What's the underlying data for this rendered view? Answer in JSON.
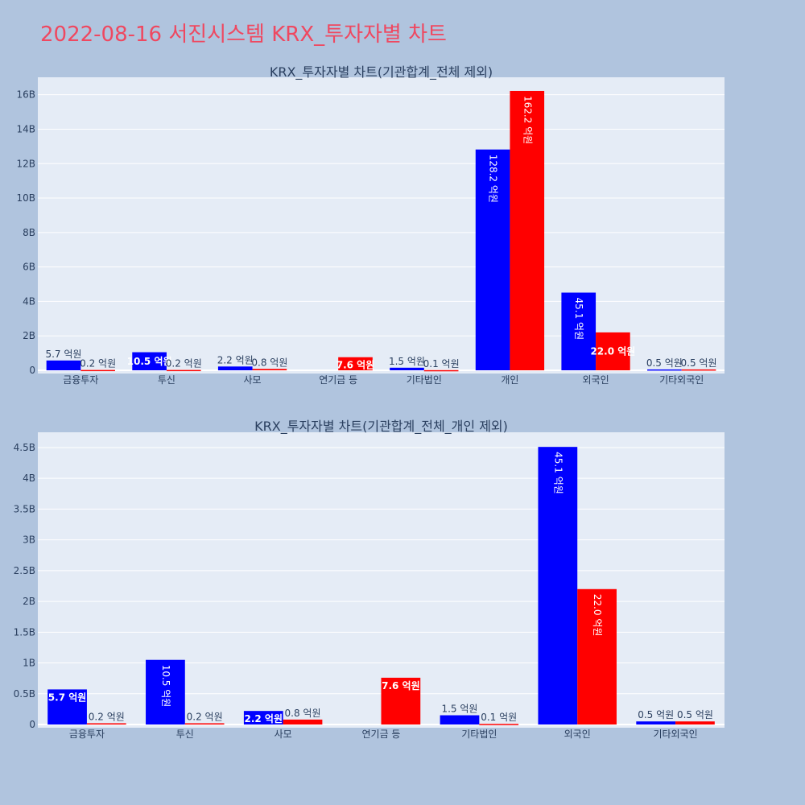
{
  "page_title": "2022-08-16 서진시스템 KRX_투자자별 차트",
  "colors": {
    "background": "#b0c4de",
    "plot_bg": "#e5ecf6",
    "buy": "#0000ff",
    "sell": "#ff0000",
    "title": "#ef4860",
    "text": "#2a3f5f"
  },
  "chart_data": [
    {
      "type": "bar",
      "title": "KRX_투자자별 차트(기관합계_전체 제외)",
      "categories": [
        "금융투자",
        "투신",
        "사모",
        "연기금 등",
        "기타법인",
        "개인",
        "외국인",
        "기타외국인"
      ],
      "series": [
        {
          "color": "#0000ff",
          "values": [
            570000000,
            1050000000,
            220000000,
            0,
            150000000,
            12820000000,
            4510000000,
            50000000
          ],
          "labels": [
            "5.7 억원",
            "10.5 억원",
            "2.2 억원",
            "",
            "1.5 억원",
            "128.2 억원",
            "45.1 억원",
            "0.5 억원"
          ]
        },
        {
          "color": "#ff0000",
          "values": [
            20000000,
            20000000,
            80000000,
            760000000,
            10000000,
            16220000000,
            2200000000,
            50000000
          ],
          "labels": [
            "0.2 억원",
            "0.2 억원",
            "0.8 억원",
            "7.6 억원",
            "0.1 억원",
            "162.2 억원",
            "22.0 억원",
            "0.5 억원"
          ]
        }
      ],
      "ylim": [
        0,
        17200000000
      ],
      "yticks": [
        0,
        2000000000,
        4000000000,
        6000000000,
        8000000000,
        10000000000,
        12000000000,
        14000000000,
        16000000000
      ],
      "ytick_labels": [
        "0",
        "2B",
        "4B",
        "6B",
        "8B",
        "10B",
        "12B",
        "14B",
        "16B"
      ],
      "grid": true
    },
    {
      "type": "bar",
      "title": "KRX_투자자별 차트(기관합계_전체_개인 제외)",
      "categories": [
        "금융투자",
        "투신",
        "사모",
        "연기금 등",
        "기타법인",
        "외국인",
        "기타외국인"
      ],
      "series": [
        {
          "color": "#0000ff",
          "values": [
            570000000,
            1050000000,
            220000000,
            0,
            150000000,
            4510000000,
            50000000
          ],
          "labels": [
            "5.7 억원",
            "10.5 억원",
            "2.2 억원",
            "",
            "1.5 억원",
            "45.1 억원",
            "0.5 억원"
          ]
        },
        {
          "color": "#ff0000",
          "values": [
            20000000,
            20000000,
            80000000,
            760000000,
            10000000,
            2200000000,
            50000000
          ],
          "labels": [
            "0.2 억원",
            "0.2 억원",
            "0.8 억원",
            "7.6 억원",
            "0.1 억원",
            "22.0 억원",
            "0.5 억원"
          ]
        }
      ],
      "ylim": [
        0,
        4800000000
      ],
      "yticks": [
        0,
        500000000,
        1000000000,
        1500000000,
        2000000000,
        2500000000,
        3000000000,
        3500000000,
        4000000000,
        4500000000
      ],
      "ytick_labels": [
        "0",
        "0.5B",
        "1B",
        "1.5B",
        "2B",
        "2.5B",
        "3B",
        "3.5B",
        "4B",
        "4.5B"
      ],
      "grid": true
    }
  ]
}
